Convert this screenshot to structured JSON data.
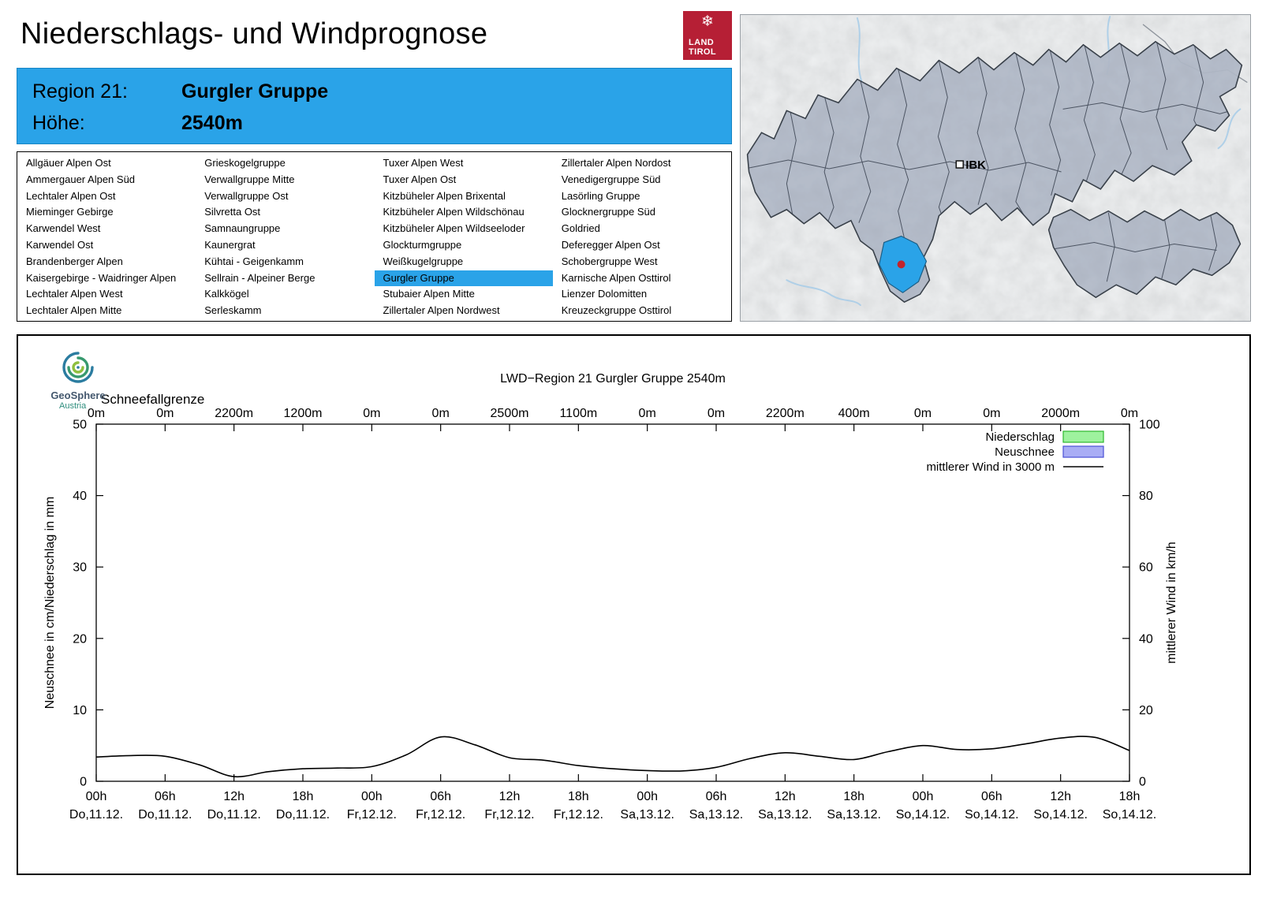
{
  "page": {
    "title": "Niederschlags- und Windprognose"
  },
  "theme": {
    "accent": "#2aa3e8",
    "brand_red": "#b61f35"
  },
  "brand": {
    "snowflake": "❄",
    "line1": "LAND",
    "line2": "TIROL"
  },
  "map": {
    "ibk_label": "IBK"
  },
  "region_header": {
    "region_label": "Region 21:",
    "region_value": "Gurgler Gruppe",
    "altitude_label": "Höhe:",
    "altitude_value": "2540m"
  },
  "region_list": {
    "selected": "Gurgler Gruppe",
    "columns": [
      [
        "Allgäuer Alpen Ost",
        "Ammergauer Alpen Süd",
        "Lechtaler Alpen Ost",
        "Mieminger Gebirge",
        "Karwendel West",
        "Karwendel Ost",
        "Brandenberger Alpen",
        "Kaisergebirge - Waidringer Alpen",
        "Lechtaler Alpen West",
        "Lechtaler Alpen Mitte"
      ],
      [
        "Grieskogelgruppe",
        "Verwallgruppe Mitte",
        "Verwallgruppe Ost",
        "Silvretta Ost",
        "Samnaungruppe",
        "Kaunergrat",
        "Kühtai - Geigenkamm",
        "Sellrain - Alpeiner Berge",
        "Kalkkögel",
        "Serleskamm"
      ],
      [
        "Tuxer Alpen West",
        "Tuxer Alpen Ost",
        "Kitzbüheler Alpen Brixental",
        "Kitzbüheler Alpen Wildschönau",
        "Kitzbüheler Alpen Wildseeloder",
        "Glockturmgruppe",
        "Weißkugelgruppe",
        "Gurgler Gruppe",
        "Stubaier Alpen Mitte",
        "Zillertaler Alpen Nordwest"
      ],
      [
        "Zillertaler Alpen Nordost",
        "Venedigergruppe Süd",
        "Lasörling Gruppe",
        "Glocknergruppe Süd",
        "Goldried",
        "Deferegger Alpen Ost",
        "Schobergruppe West",
        "Karnische Alpen Osttirol",
        "Lienzer Dolomitten",
        "Kreuzeckgruppe Osttirol"
      ]
    ]
  },
  "geosphere": {
    "name": "GeoSphere",
    "sub": "Austria"
  },
  "chart_data": {
    "type": "line",
    "title": "LWD−Region 21 Gurgler Gruppe 2540m",
    "snowline": {
      "label": "Schneefallgrenze",
      "values": [
        "0m",
        "0m",
        "2200m",
        "1200m",
        "0m",
        "0m",
        "2500m",
        "1100m",
        "0m",
        "0m",
        "2200m",
        "400m",
        "0m",
        "0m",
        "2000m",
        "0m"
      ]
    },
    "x_hour_labels": [
      "00h",
      "06h",
      "12h",
      "18h",
      "00h",
      "06h",
      "12h",
      "18h",
      "00h",
      "06h",
      "12h",
      "18h",
      "00h",
      "06h",
      "12h",
      "18h"
    ],
    "x_date_labels": [
      "Do,11.12.",
      "Do,11.12.",
      "Do,11.12.",
      "Do,11.12.",
      "Fr,12.12.",
      "Fr,12.12.",
      "Fr,12.12.",
      "Fr,12.12.",
      "Sa,13.12.",
      "Sa,13.12.",
      "Sa,13.12.",
      "Sa,13.12.",
      "So,14.12.",
      "So,14.12.",
      "So,14.12.",
      "So,14.12."
    ],
    "x_range_hours": [
      0,
      90
    ],
    "ylabel_left": "Neuschnee in cm/Niederschlag in mm",
    "ylabel_right": "mittlerer Wind in km/h",
    "ylim_left": [
      0,
      50
    ],
    "ylim_right": [
      0,
      100
    ],
    "yticks_left": [
      0,
      10,
      20,
      30,
      40,
      50
    ],
    "yticks_right": [
      0,
      20,
      40,
      60,
      80,
      100
    ],
    "grid": false,
    "legend_position": "top-right",
    "legend": [
      {
        "label": "Niederschlag",
        "swatch": "box",
        "fill": "#9ef29e",
        "stroke": "#2db82d"
      },
      {
        "label": "Neuschnee",
        "swatch": "box",
        "fill": "#a9adf5",
        "stroke": "#4b50d6"
      },
      {
        "label": "mittlerer Wind in 3000 m",
        "swatch": "line",
        "stroke": "#000000"
      }
    ],
    "series": [
      {
        "name": "Niederschlag",
        "type": "bars",
        "unit": "mm",
        "axis": "left",
        "x_hours": [
          0,
          6,
          12,
          18,
          24,
          30,
          36,
          42,
          48,
          54,
          60,
          66,
          72,
          78,
          84,
          90
        ],
        "values": [
          0,
          0,
          0,
          0,
          0,
          0,
          0,
          0,
          0,
          0,
          0,
          0,
          0,
          0,
          0,
          0
        ]
      },
      {
        "name": "Neuschnee",
        "type": "bars",
        "unit": "cm",
        "axis": "left",
        "x_hours": [
          0,
          6,
          12,
          18,
          24,
          30,
          36,
          42,
          48,
          54,
          60,
          66,
          72,
          78,
          84,
          90
        ],
        "values": [
          0,
          0,
          0,
          0,
          0,
          0,
          0,
          0,
          0,
          0,
          0,
          0,
          0,
          0,
          0,
          0
        ]
      },
      {
        "name": "mittlerer Wind in 3000 m",
        "type": "line",
        "unit": "km/h",
        "axis": "right",
        "x_hours": [
          0,
          3,
          6,
          9,
          12,
          15,
          18,
          21,
          24,
          27,
          30,
          33,
          36,
          39,
          42,
          45,
          48,
          51,
          54,
          57,
          60,
          63,
          66,
          69,
          72,
          75,
          78,
          81,
          84,
          87,
          90
        ],
        "values": [
          6.8,
          7.2,
          7.0,
          4.6,
          1.3,
          2.7,
          3.5,
          3.7,
          4.1,
          7.4,
          12.4,
          10.2,
          6.6,
          5.9,
          4.4,
          3.5,
          3.0,
          2.9,
          3.9,
          6.4,
          8.0,
          7.0,
          6.1,
          8.3,
          10.0,
          8.9,
          9.1,
          10.5,
          12.1,
          12.3,
          8.6
        ]
      }
    ]
  }
}
